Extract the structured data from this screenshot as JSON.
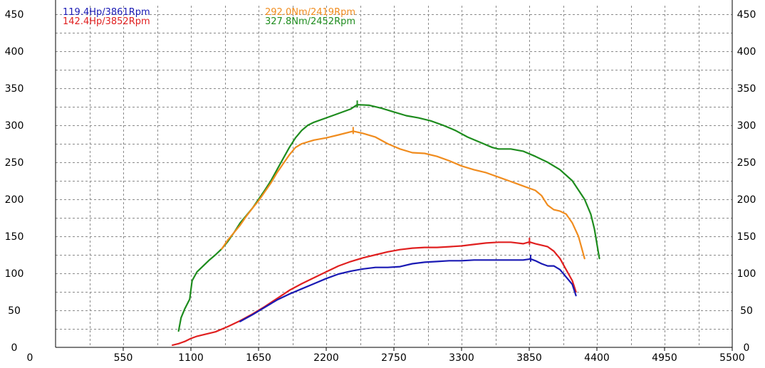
{
  "chart_data": {
    "type": "line",
    "title": "",
    "xlabel": "",
    "ylabel": "",
    "xlim": [
      0,
      5500
    ],
    "ylim": [
      0,
      450
    ],
    "x_ticks": [
      "0",
      "550",
      "1100",
      "1650",
      "2200",
      "2750",
      "3300",
      "3850",
      "4400",
      "4950",
      "5500"
    ],
    "y_ticks": [
      "0",
      "50",
      "100",
      "150",
      "200",
      "250",
      "300",
      "350",
      "400",
      "450"
    ],
    "grid": true,
    "legend": [
      {
        "text": "119.4Hp/3861Rpm",
        "color": "#1a1ab4"
      },
      {
        "text": "142.4Hp/3852Rpm",
        "color": "#e02020"
      },
      {
        "text": "292.0Nm/2419Rpm",
        "color": "#f08c1e"
      },
      {
        "text": "327.8Nm/2452Rpm",
        "color": "#1e8c1e"
      }
    ],
    "series": [
      {
        "color": "#1e8c1e",
        "points": [
          [
            1000,
            22
          ],
          [
            1020,
            40
          ],
          [
            1050,
            52
          ],
          [
            1090,
            65
          ],
          [
            1110,
            90
          ],
          [
            1150,
            102
          ],
          [
            1200,
            110
          ],
          [
            1250,
            118
          ],
          [
            1300,
            125
          ],
          [
            1350,
            133
          ],
          [
            1400,
            143
          ],
          [
            1450,
            155
          ],
          [
            1500,
            168
          ],
          [
            1550,
            178
          ],
          [
            1600,
            188
          ],
          [
            1650,
            200
          ],
          [
            1700,
            212
          ],
          [
            1750,
            225
          ],
          [
            1800,
            240
          ],
          [
            1850,
            255
          ],
          [
            1900,
            270
          ],
          [
            1950,
            283
          ],
          [
            2000,
            293
          ],
          [
            2050,
            300
          ],
          [
            2100,
            304
          ],
          [
            2200,
            310
          ],
          [
            2300,
            316
          ],
          [
            2400,
            322
          ],
          [
            2452,
            327.8
          ],
          [
            2550,
            327
          ],
          [
            2650,
            323
          ],
          [
            2750,
            318
          ],
          [
            2850,
            313
          ],
          [
            2950,
            310
          ],
          [
            3050,
            306
          ],
          [
            3150,
            300
          ],
          [
            3250,
            293
          ],
          [
            3350,
            284
          ],
          [
            3450,
            277
          ],
          [
            3550,
            270
          ],
          [
            3600,
            268
          ],
          [
            3700,
            268
          ],
          [
            3800,
            265
          ],
          [
            3900,
            258
          ],
          [
            4000,
            250
          ],
          [
            4100,
            240
          ],
          [
            4200,
            225
          ],
          [
            4300,
            200
          ],
          [
            4350,
            180
          ],
          [
            4380,
            160
          ],
          [
            4400,
            140
          ],
          [
            4420,
            120
          ]
        ]
      },
      {
        "color": "#f08c1e",
        "points": [
          [
            1350,
            133
          ],
          [
            1400,
            145
          ],
          [
            1450,
            155
          ],
          [
            1500,
            165
          ],
          [
            1550,
            177
          ],
          [
            1600,
            188
          ],
          [
            1650,
            198
          ],
          [
            1700,
            210
          ],
          [
            1750,
            222
          ],
          [
            1800,
            236
          ],
          [
            1850,
            248
          ],
          [
            1900,
            260
          ],
          [
            1950,
            270
          ],
          [
            2000,
            275
          ],
          [
            2100,
            280
          ],
          [
            2200,
            283
          ],
          [
            2300,
            287
          ],
          [
            2419,
            292
          ],
          [
            2500,
            289
          ],
          [
            2600,
            284
          ],
          [
            2700,
            275
          ],
          [
            2800,
            268
          ],
          [
            2900,
            263
          ],
          [
            3000,
            262
          ],
          [
            3100,
            258
          ],
          [
            3200,
            252
          ],
          [
            3300,
            245
          ],
          [
            3400,
            240
          ],
          [
            3500,
            236
          ],
          [
            3600,
            230
          ],
          [
            3700,
            224
          ],
          [
            3800,
            218
          ],
          [
            3900,
            212
          ],
          [
            3950,
            205
          ],
          [
            4000,
            192
          ],
          [
            4050,
            186
          ],
          [
            4100,
            184
          ],
          [
            4150,
            180
          ],
          [
            4200,
            168
          ],
          [
            4250,
            150
          ],
          [
            4300,
            120
          ]
        ]
      },
      {
        "color": "#e02020",
        "points": [
          [
            950,
            3
          ],
          [
            1000,
            5
          ],
          [
            1050,
            8
          ],
          [
            1100,
            12
          ],
          [
            1150,
            15
          ],
          [
            1200,
            17
          ],
          [
            1300,
            21
          ],
          [
            1400,
            28
          ],
          [
            1500,
            36
          ],
          [
            1600,
            45
          ],
          [
            1700,
            55
          ],
          [
            1800,
            66
          ],
          [
            1900,
            77
          ],
          [
            2000,
            86
          ],
          [
            2100,
            94
          ],
          [
            2200,
            102
          ],
          [
            2300,
            110
          ],
          [
            2400,
            116
          ],
          [
            2500,
            121
          ],
          [
            2600,
            125
          ],
          [
            2700,
            129
          ],
          [
            2800,
            132
          ],
          [
            2900,
            134
          ],
          [
            3000,
            135
          ],
          [
            3100,
            135
          ],
          [
            3200,
            136
          ],
          [
            3300,
            137
          ],
          [
            3400,
            139
          ],
          [
            3500,
            141
          ],
          [
            3600,
            142
          ],
          [
            3700,
            142
          ],
          [
            3800,
            140
          ],
          [
            3852,
            142.4
          ],
          [
            3900,
            140
          ],
          [
            4000,
            136
          ],
          [
            4050,
            130
          ],
          [
            4100,
            120
          ],
          [
            4150,
            105
          ],
          [
            4200,
            90
          ],
          [
            4230,
            75
          ]
        ]
      },
      {
        "color": "#1a1ab4",
        "points": [
          [
            1500,
            35
          ],
          [
            1600,
            44
          ],
          [
            1700,
            54
          ],
          [
            1800,
            64
          ],
          [
            1900,
            72
          ],
          [
            2000,
            79
          ],
          [
            2100,
            86
          ],
          [
            2200,
            93
          ],
          [
            2300,
            99
          ],
          [
            2400,
            103
          ],
          [
            2500,
            106
          ],
          [
            2600,
            108
          ],
          [
            2700,
            108
          ],
          [
            2800,
            109
          ],
          [
            2900,
            113
          ],
          [
            3000,
            115
          ],
          [
            3100,
            116
          ],
          [
            3200,
            117
          ],
          [
            3300,
            117
          ],
          [
            3400,
            118
          ],
          [
            3500,
            118
          ],
          [
            3600,
            118
          ],
          [
            3700,
            118
          ],
          [
            3800,
            118
          ],
          [
            3861,
            119.4
          ],
          [
            3900,
            117
          ],
          [
            3950,
            113
          ],
          [
            4000,
            110
          ],
          [
            4050,
            110
          ],
          [
            4100,
            105
          ],
          [
            4150,
            95
          ],
          [
            4200,
            85
          ],
          [
            4230,
            70
          ]
        ]
      }
    ],
    "peak_markers": [
      {
        "color": "#1e8c1e",
        "x": 2452,
        "y": 327.8
      },
      {
        "color": "#f08c1e",
        "x": 2419,
        "y": 292.0
      },
      {
        "color": "#e02020",
        "x": 3852,
        "y": 142.4
      },
      {
        "color": "#1a1ab4",
        "x": 3861,
        "y": 119.4
      }
    ]
  }
}
